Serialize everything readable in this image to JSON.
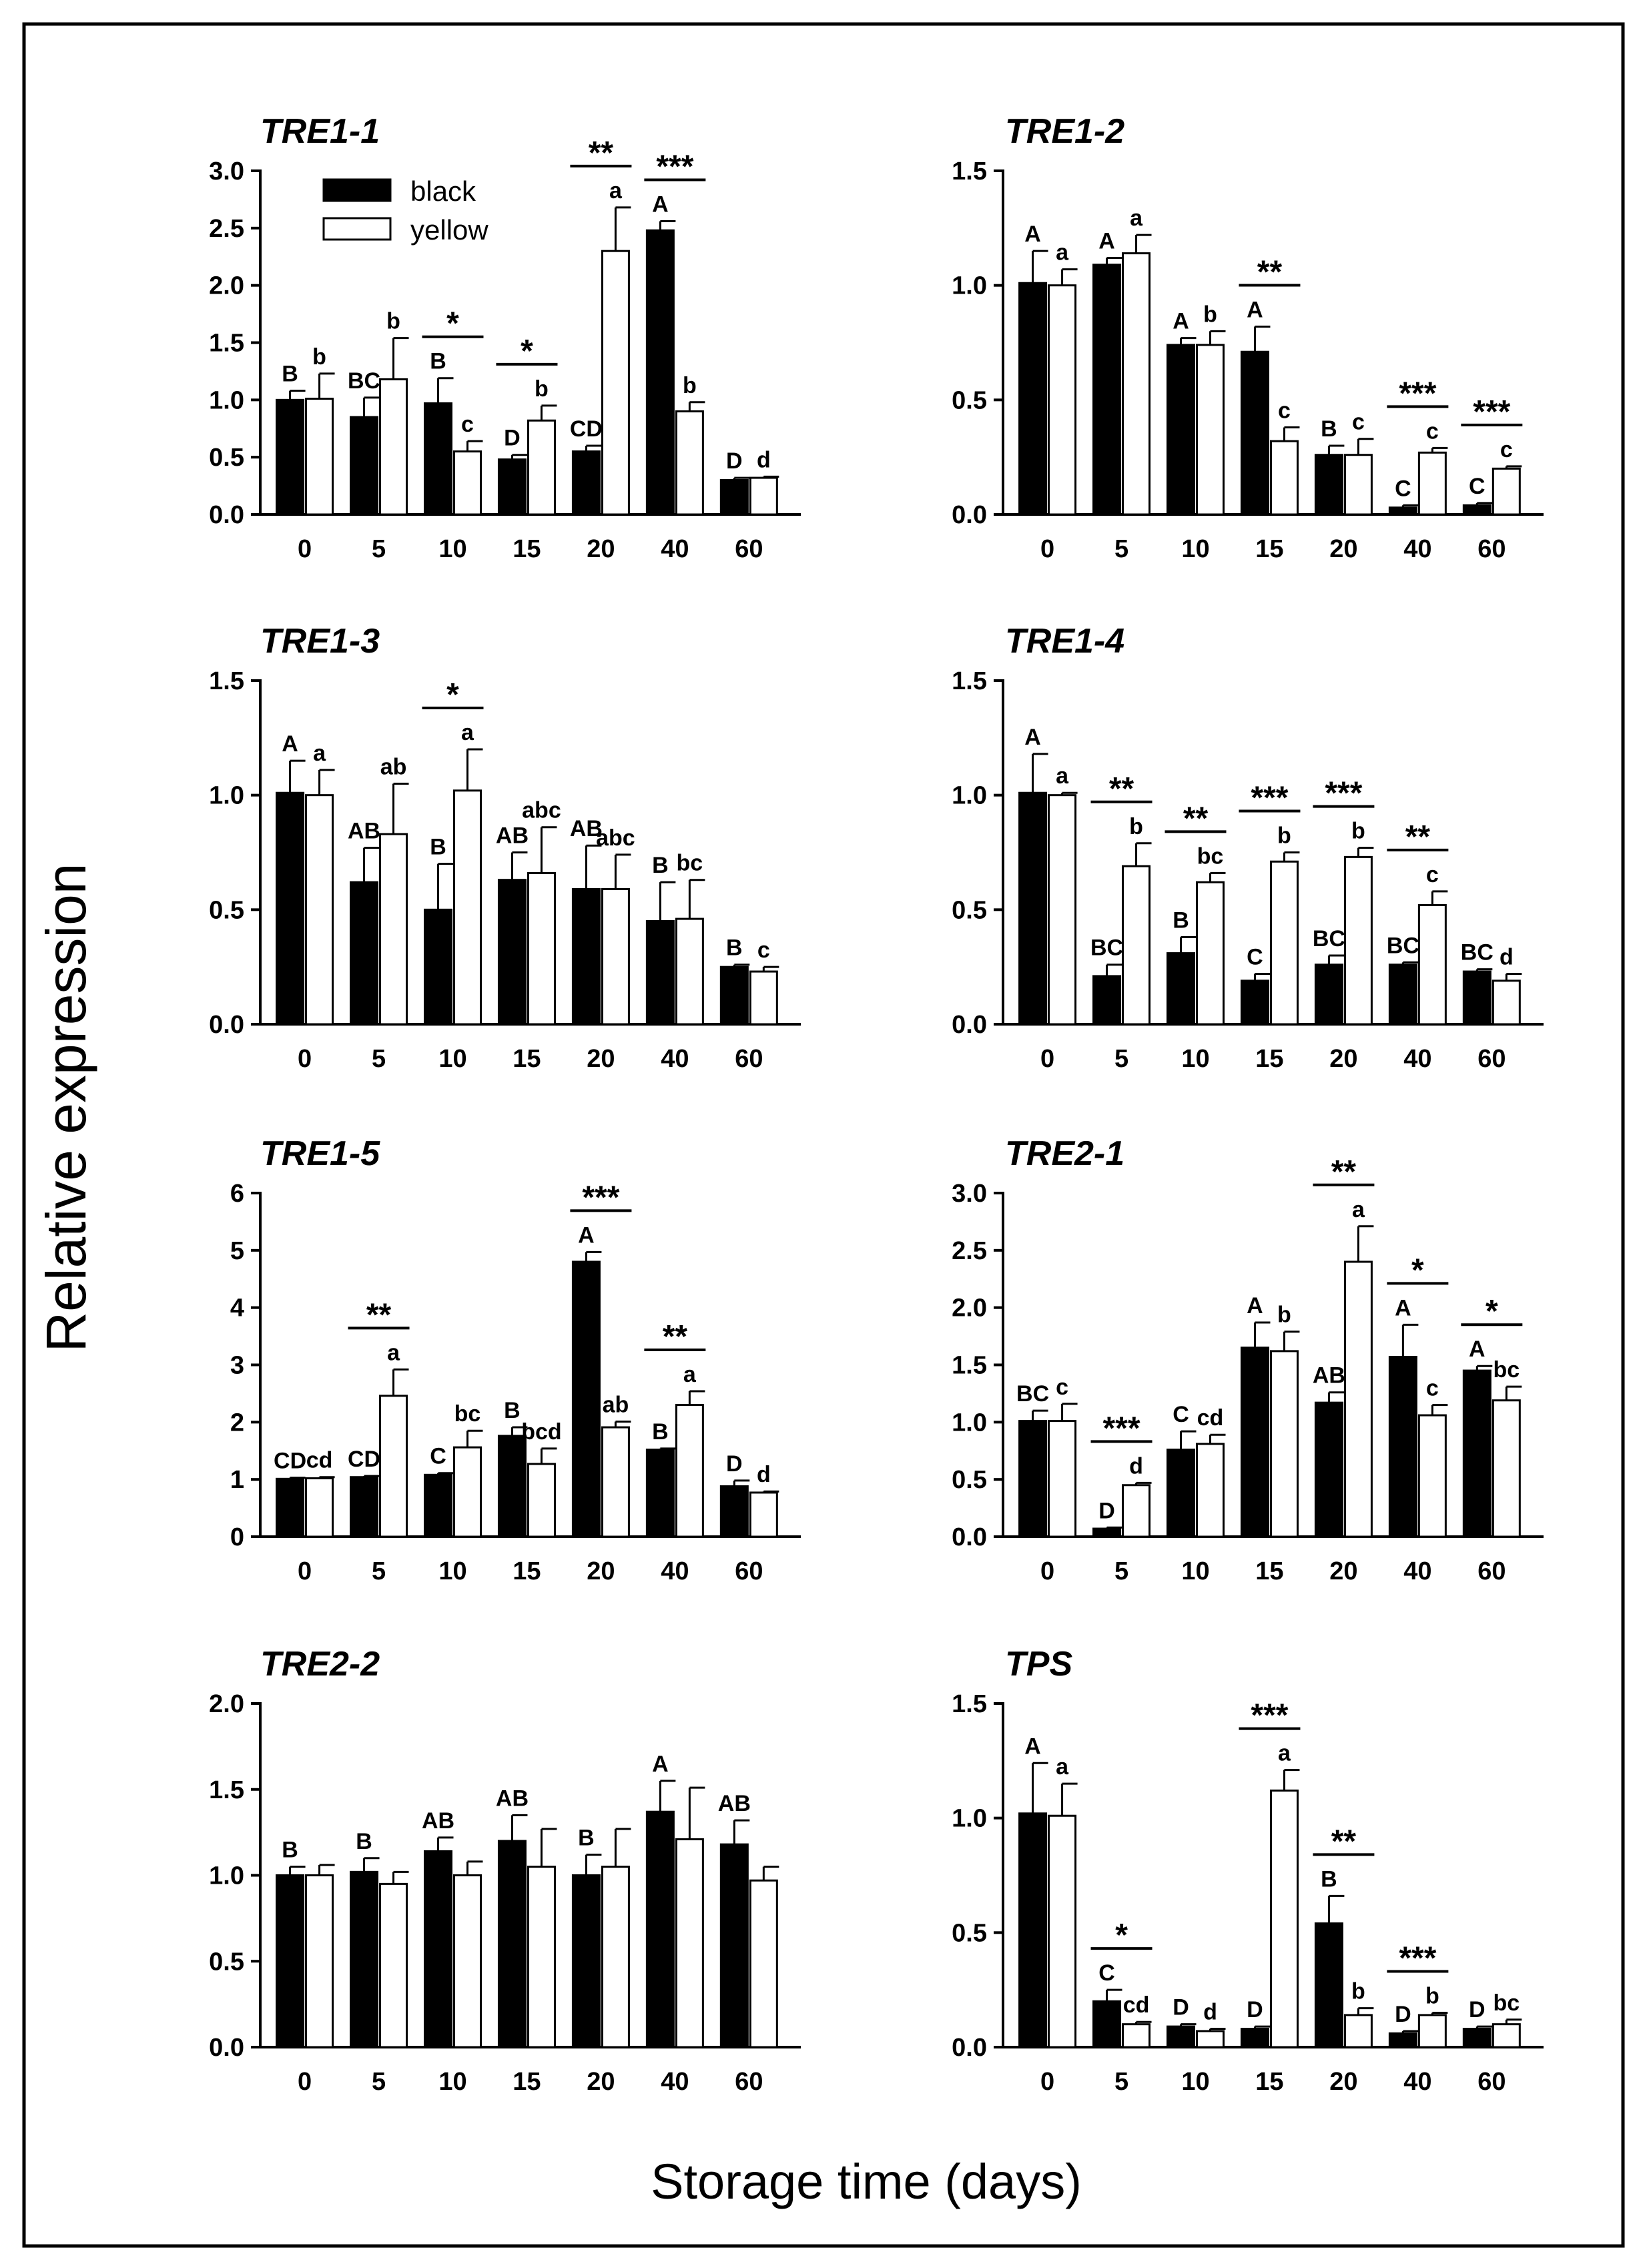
{
  "figure": {
    "ylabel": "Relative expression",
    "xlabel": "Storage time (days)",
    "legend": {
      "black": "black",
      "yellow": "yellow"
    }
  },
  "colors": {
    "black_bar": "#000000",
    "yellow_bar": "#ffffff",
    "axis": "#000000"
  },
  "chart_data": [
    {
      "type": "bar",
      "title": "TRE1-1",
      "categories": [
        "0",
        "5",
        "10",
        "15",
        "20",
        "40",
        "60"
      ],
      "ylim": [
        0,
        3.0
      ],
      "yticks": [
        "0.0",
        "0.5",
        "1.0",
        "1.5",
        "2.0",
        "2.5",
        "3.0"
      ],
      "series": [
        {
          "name": "black",
          "values": [
            1.0,
            0.85,
            0.97,
            0.48,
            0.55,
            2.48,
            0.3
          ],
          "errors": [
            0.08,
            0.17,
            0.22,
            0.04,
            0.05,
            0.08,
            0.02
          ],
          "letters": [
            "B",
            "BC",
            "B",
            "D",
            "CD",
            "A",
            "D"
          ]
        },
        {
          "name": "yellow",
          "values": [
            1.01,
            1.18,
            0.55,
            0.82,
            2.3,
            0.9,
            0.32
          ],
          "errors": [
            0.22,
            0.36,
            0.09,
            0.13,
            0.38,
            0.08,
            0.01
          ],
          "letters": [
            "b",
            "b",
            "c",
            "b",
            "a",
            "b",
            "d"
          ]
        }
      ],
      "significance": [
        "",
        "",
        "*",
        "*",
        "**",
        "***",
        ""
      ]
    },
    {
      "type": "bar",
      "title": "TRE1-2",
      "categories": [
        "0",
        "5",
        "10",
        "15",
        "20",
        "40",
        "60"
      ],
      "ylim": [
        0,
        1.5
      ],
      "yticks": [
        "0.0",
        "0.5",
        "1.0",
        "1.5"
      ],
      "series": [
        {
          "name": "black",
          "values": [
            1.01,
            1.09,
            0.74,
            0.71,
            0.26,
            0.03,
            0.04
          ],
          "errors": [
            0.14,
            0.03,
            0.03,
            0.11,
            0.04,
            0.01,
            0.01
          ],
          "letters": [
            "A",
            "A",
            "A",
            "A",
            "B",
            "C",
            "C"
          ]
        },
        {
          "name": "yellow",
          "values": [
            1.0,
            1.14,
            0.74,
            0.32,
            0.26,
            0.27,
            0.2
          ],
          "errors": [
            0.07,
            0.08,
            0.06,
            0.06,
            0.07,
            0.02,
            0.01
          ],
          "letters": [
            "a",
            "a",
            "b",
            "c",
            "c",
            "c",
            "c"
          ]
        }
      ],
      "significance": [
        "",
        "",
        "",
        "**",
        "",
        "***",
        "***"
      ]
    },
    {
      "type": "bar",
      "title": "TRE1-3",
      "categories": [
        "0",
        "5",
        "10",
        "15",
        "20",
        "40",
        "60"
      ],
      "ylim": [
        0,
        1.5
      ],
      "yticks": [
        "0.0",
        "0.5",
        "1.0",
        "1.5"
      ],
      "series": [
        {
          "name": "black",
          "values": [
            1.01,
            0.62,
            0.5,
            0.63,
            0.59,
            0.45,
            0.25
          ],
          "errors": [
            0.14,
            0.15,
            0.2,
            0.12,
            0.19,
            0.17,
            0.01
          ],
          "letters": [
            "A",
            "AB",
            "B",
            "AB",
            "AB",
            "B",
            "B"
          ]
        },
        {
          "name": "yellow",
          "values": [
            1.0,
            0.83,
            1.02,
            0.66,
            0.59,
            0.46,
            0.23
          ],
          "errors": [
            0.11,
            0.22,
            0.18,
            0.2,
            0.15,
            0.17,
            0.02
          ],
          "letters": [
            "a",
            "ab",
            "a",
            "abc",
            "abc",
            "bc",
            "c"
          ]
        }
      ],
      "significance": [
        "",
        "",
        "*",
        "",
        "",
        "",
        ""
      ]
    },
    {
      "type": "bar",
      "title": "TRE1-4",
      "categories": [
        "0",
        "5",
        "10",
        "15",
        "20",
        "40",
        "60"
      ],
      "ylim": [
        0,
        1.5
      ],
      "yticks": [
        "0.0",
        "0.5",
        "1.0",
        "1.5"
      ],
      "series": [
        {
          "name": "black",
          "values": [
            1.01,
            0.21,
            0.31,
            0.19,
            0.26,
            0.26,
            0.23
          ],
          "errors": [
            0.17,
            0.05,
            0.07,
            0.03,
            0.04,
            0.01,
            0.01
          ],
          "letters": [
            "A",
            "BC",
            "B",
            "C",
            "BC",
            "BC",
            "BC"
          ]
        },
        {
          "name": "yellow",
          "values": [
            1.0,
            0.69,
            0.62,
            0.71,
            0.73,
            0.52,
            0.19
          ],
          "errors": [
            0.01,
            0.1,
            0.04,
            0.04,
            0.04,
            0.06,
            0.03
          ],
          "letters": [
            "a",
            "b",
            "bc",
            "b",
            "b",
            "c",
            "d"
          ]
        }
      ],
      "significance": [
        "",
        "**",
        "**",
        "***",
        "***",
        "**",
        ""
      ]
    },
    {
      "type": "bar",
      "title": "TRE1-5",
      "categories": [
        "0",
        "5",
        "10",
        "15",
        "20",
        "40",
        "60"
      ],
      "ylim": [
        0,
        6
      ],
      "yticks": [
        "0",
        "1",
        "2",
        "3",
        "4",
        "5",
        "6"
      ],
      "series": [
        {
          "name": "black",
          "values": [
            1.01,
            1.04,
            1.08,
            1.76,
            4.8,
            1.52,
            0.88
          ],
          "errors": [
            0.02,
            0.02,
            0.03,
            0.15,
            0.17,
            0.02,
            0.1
          ],
          "letters": [
            "CD",
            "CD",
            "C",
            "B",
            "A",
            "B",
            "D"
          ]
        },
        {
          "name": "yellow",
          "values": [
            1.02,
            2.46,
            1.56,
            1.27,
            1.91,
            2.3,
            0.77
          ],
          "errors": [
            0.02,
            0.46,
            0.29,
            0.27,
            0.1,
            0.24,
            0.02
          ],
          "letters": [
            "cd",
            "a",
            "bc",
            "bcd",
            "ab",
            "a",
            "d"
          ]
        }
      ],
      "significance": [
        "",
        "**",
        "",
        "",
        "***",
        "**",
        ""
      ]
    },
    {
      "type": "bar",
      "title": "TRE2-1",
      "categories": [
        "0",
        "5",
        "10",
        "15",
        "20",
        "40",
        "60"
      ],
      "ylim": [
        0,
        3.0
      ],
      "yticks": [
        "0.0",
        "0.5",
        "1.0",
        "1.5",
        "2.0",
        "2.5",
        "3.0"
      ],
      "series": [
        {
          "name": "black",
          "values": [
            1.01,
            0.07,
            0.76,
            1.65,
            1.17,
            1.57,
            1.45
          ],
          "errors": [
            0.09,
            0.01,
            0.16,
            0.22,
            0.09,
            0.28,
            0.04
          ],
          "letters": [
            "BC",
            "D",
            "C",
            "A",
            "AB",
            "A",
            "A"
          ]
        },
        {
          "name": "yellow",
          "values": [
            1.01,
            0.45,
            0.81,
            1.62,
            2.4,
            1.06,
            1.19
          ],
          "errors": [
            0.15,
            0.02,
            0.08,
            0.17,
            0.31,
            0.09,
            0.12
          ],
          "letters": [
            "c",
            "d",
            "cd",
            "b",
            "a",
            "c",
            "bc"
          ]
        }
      ],
      "significance": [
        "",
        "***",
        "",
        "",
        "**",
        "*",
        "*"
      ]
    },
    {
      "type": "bar",
      "title": "TRE2-2",
      "categories": [
        "0",
        "5",
        "10",
        "15",
        "20",
        "40",
        "60"
      ],
      "ylim": [
        0,
        2.0
      ],
      "yticks": [
        "0.0",
        "0.5",
        "1.0",
        "1.5",
        "2.0"
      ],
      "series": [
        {
          "name": "black",
          "values": [
            1.0,
            1.02,
            1.14,
            1.2,
            1.0,
            1.37,
            1.18
          ],
          "errors": [
            0.05,
            0.08,
            0.08,
            0.15,
            0.12,
            0.18,
            0.14
          ],
          "letters": [
            "B",
            "B",
            "AB",
            "AB",
            "B",
            "A",
            "AB"
          ]
        },
        {
          "name": "yellow",
          "values": [
            1.0,
            0.95,
            1.0,
            1.05,
            1.05,
            1.21,
            0.97
          ],
          "errors": [
            0.06,
            0.07,
            0.08,
            0.22,
            0.22,
            0.3,
            0.08
          ],
          "letters": [
            "",
            "",
            "",
            "",
            "",
            "",
            ""
          ]
        }
      ],
      "significance": [
        "",
        "",
        "",
        "",
        "",
        "",
        ""
      ]
    },
    {
      "type": "bar",
      "title": "TPS",
      "categories": [
        "0",
        "5",
        "10",
        "15",
        "20",
        "40",
        "60"
      ],
      "ylim": [
        0,
        1.5
      ],
      "yticks": [
        "0.0",
        "0.5",
        "1.0",
        "1.5"
      ],
      "series": [
        {
          "name": "black",
          "values": [
            1.02,
            0.2,
            0.09,
            0.08,
            0.54,
            0.06,
            0.08
          ],
          "errors": [
            0.22,
            0.05,
            0.01,
            0.01,
            0.12,
            0.01,
            0.01
          ],
          "letters": [
            "A",
            "C",
            "D",
            "D",
            "B",
            "D",
            "D"
          ]
        },
        {
          "name": "yellow",
          "values": [
            1.01,
            0.1,
            0.07,
            1.12,
            0.14,
            0.14,
            0.1
          ],
          "errors": [
            0.14,
            0.01,
            0.01,
            0.09,
            0.03,
            0.01,
            0.02
          ],
          "letters": [
            "a",
            "cd",
            "d",
            "a",
            "b",
            "b",
            "bc"
          ]
        }
      ],
      "significance": [
        "",
        "*",
        "",
        "***",
        "**",
        "***",
        ""
      ]
    }
  ]
}
